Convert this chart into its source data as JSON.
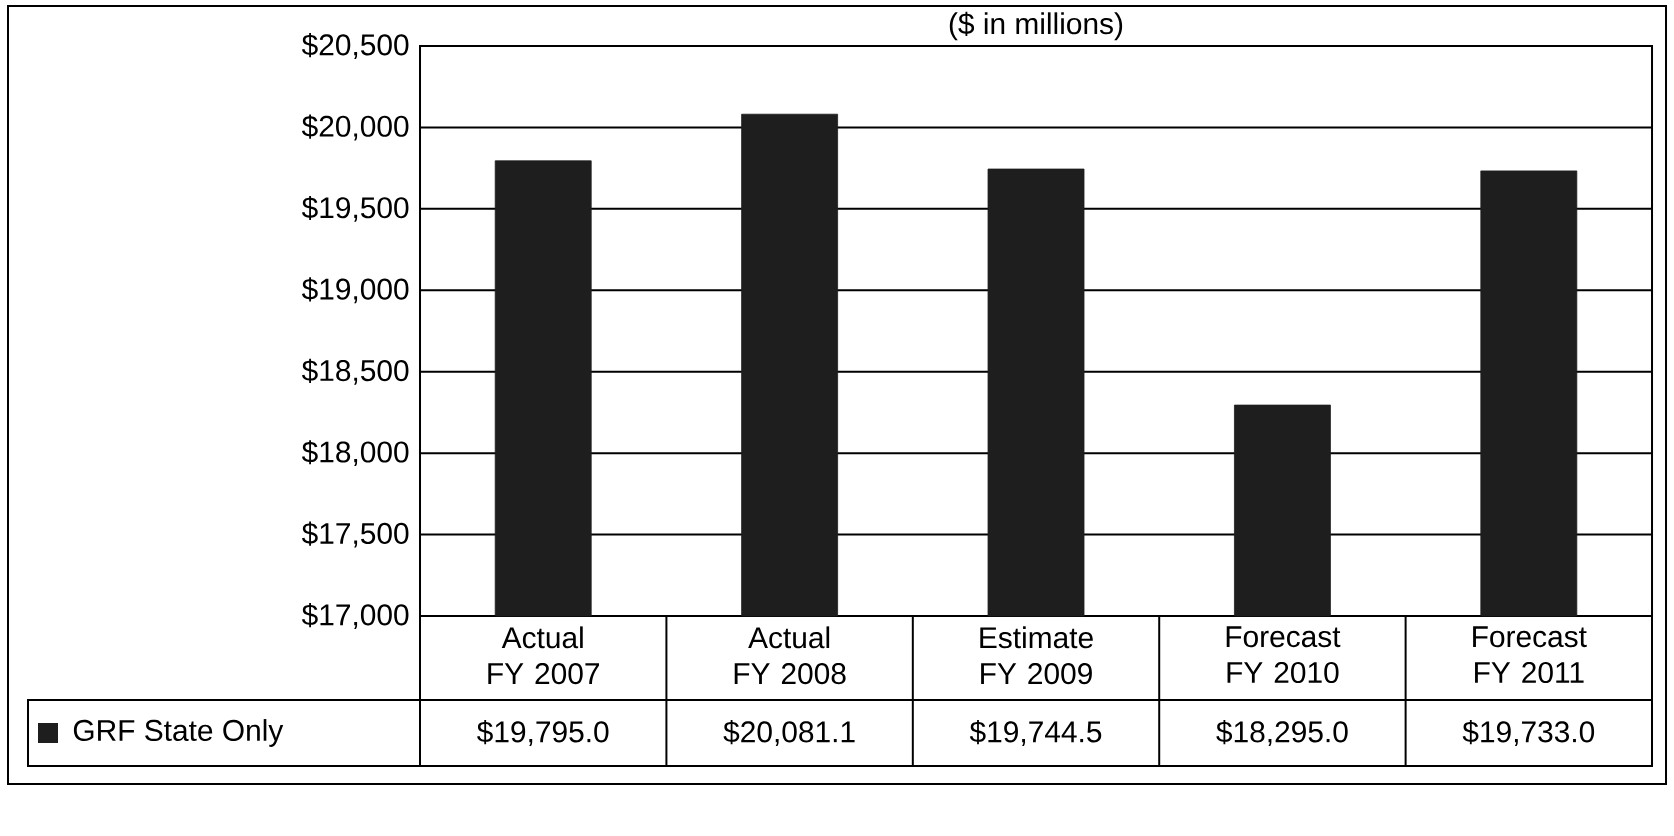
{
  "chart_data": {
    "type": "bar",
    "title": "($ in millions)",
    "categories": [
      "Actual FY 2007",
      "Actual FY 2008",
      "Estimate FY 2009",
      "Forecast FY 2010",
      "Forecast FY 2011"
    ],
    "series": [
      {
        "name": "GRF State Only",
        "color": "#1e1e1e",
        "values": [
          19795.0,
          20081.1,
          19744.5,
          18295.0,
          19733.0
        ],
        "value_labels": [
          "$19,795.0",
          "$20,081.1",
          "$19,744.5",
          "$18,295.0",
          "$19,733.0"
        ]
      }
    ],
    "ylim": [
      17000,
      20500
    ],
    "yticks": [
      {
        "value": 17000,
        "label": "$17,000"
      },
      {
        "value": 17500,
        "label": "$17,500"
      },
      {
        "value": 18000,
        "label": "$18,000"
      },
      {
        "value": 18500,
        "label": "$18,500"
      },
      {
        "value": 19000,
        "label": "$19,000"
      },
      {
        "value": 19500,
        "label": "$19,500"
      },
      {
        "value": 20000,
        "label": "$20,000"
      },
      {
        "value": 20500,
        "label": "$20,500"
      }
    ],
    "grid": "y",
    "legend": "bottom left"
  }
}
